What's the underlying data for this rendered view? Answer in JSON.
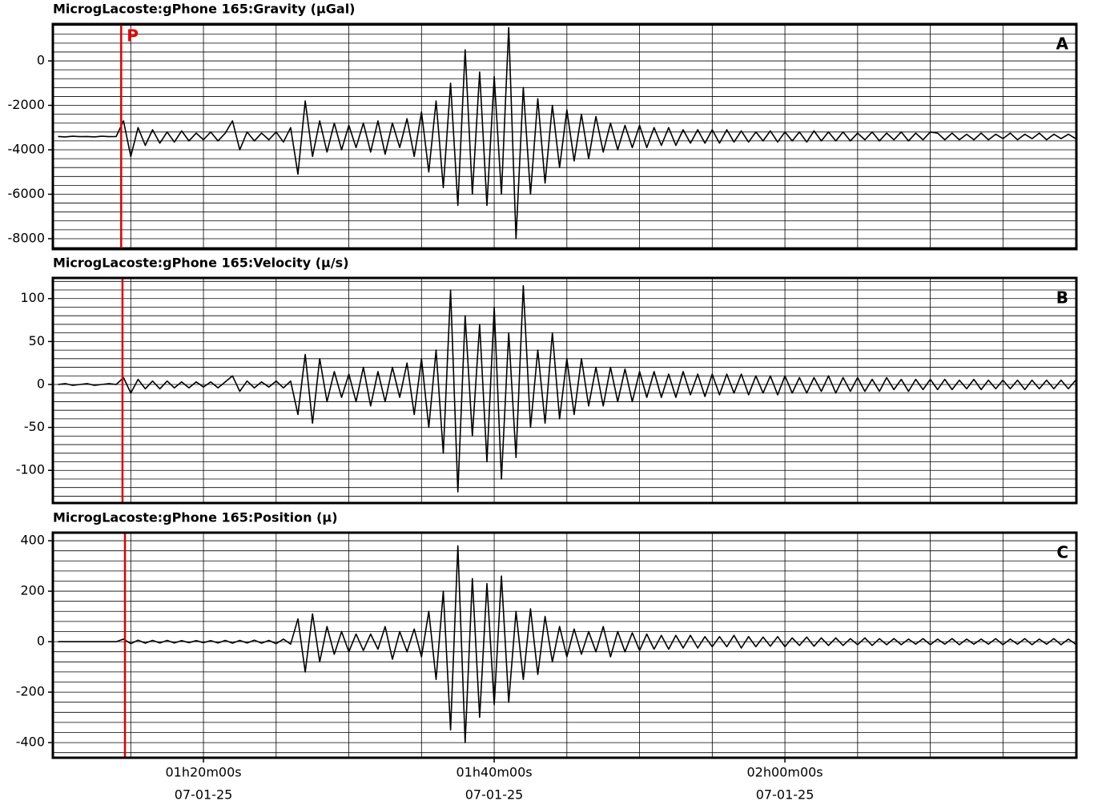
{
  "chart_data": [
    {
      "type": "line",
      "title": "MicrogLacoste:gPhone 165:Gravity (µGal)",
      "panel_label": "A",
      "color": "#000000",
      "xlim": [
        69.64,
        140.05
      ],
      "ylim": [
        -8470,
        1660
      ],
      "yticks": [
        0,
        -2000,
        -4000,
        -6000,
        -8000
      ],
      "ygrid": [
        1600,
        1200,
        800,
        400,
        0,
        -400,
        -800,
        -1200,
        -1600,
        -2000,
        -2400,
        -2800,
        -3200,
        -3600,
        -4000,
        -4400,
        -4800,
        -5200,
        -5600,
        -6000,
        -6400,
        -6800,
        -7200,
        -7600,
        -8000,
        -8400
      ],
      "xgrid": [
        75,
        80,
        85,
        90,
        95,
        100,
        105,
        110,
        115,
        120,
        125,
        130,
        135
      ],
      "marker": {
        "x": 74.34,
        "label": "P",
        "color": "#e00000"
      },
      "x": [
        70,
        70.5,
        71,
        71.5,
        72,
        72.5,
        73,
        73.5,
        74,
        74.5,
        75,
        75.5,
        76,
        76.5,
        77,
        77.5,
        78,
        78.5,
        79,
        79.5,
        80,
        80.5,
        81,
        81.5,
        82,
        82.5,
        83,
        83.5,
        84,
        84.5,
        85,
        85.5,
        86,
        86.5,
        87,
        87.5,
        88,
        88.5,
        89,
        89.5,
        90,
        90.5,
        91,
        91.5,
        92,
        92.5,
        93,
        93.5,
        94,
        94.5,
        95,
        95.5,
        96,
        96.5,
        97,
        97.5,
        98,
        98.5,
        99,
        99.5,
        100,
        100.5,
        101,
        101.5,
        102,
        102.5,
        103,
        103.5,
        104,
        104.5,
        105,
        105.5,
        106,
        106.5,
        107,
        107.5,
        108,
        108.5,
        109,
        109.5,
        110,
        110.5,
        111,
        111.5,
        112,
        112.5,
        113,
        113.5,
        114,
        114.5,
        115,
        115.5,
        116,
        116.5,
        117,
        117.5,
        118,
        118.5,
        119,
        119.5,
        120,
        120.5,
        121,
        121.5,
        122,
        122.5,
        123,
        123.5,
        124,
        124.5,
        125,
        125.5,
        126,
        126.5,
        127,
        127.5,
        128,
        128.5,
        129,
        129.5,
        130,
        130.5,
        131,
        131.5,
        132,
        132.5,
        133,
        133.5,
        134,
        134.5,
        135,
        135.5,
        136,
        136.5,
        137,
        137.5,
        138,
        138.5,
        139,
        139.5,
        140
      ],
      "values": [
        -3400,
        -3420,
        -3390,
        -3410,
        -3400,
        -3420,
        -3390,
        -3410,
        -3400,
        -2700,
        -4300,
        -3000,
        -3800,
        -3100,
        -3700,
        -3200,
        -3650,
        -3150,
        -3600,
        -3250,
        -3550,
        -3200,
        -3600,
        -3250,
        -2700,
        -4000,
        -3200,
        -3600,
        -3250,
        -3550,
        -3200,
        -3650,
        -3000,
        -5100,
        -1800,
        -4300,
        -2700,
        -4100,
        -2800,
        -4000,
        -2900,
        -3900,
        -2800,
        -4100,
        -2700,
        -4200,
        -2800,
        -3900,
        -2600,
        -4300,
        -2300,
        -5000,
        -1800,
        -5700,
        -1000,
        -6500,
        500,
        -6000,
        -500,
        -6500,
        -700,
        -6000,
        1500,
        -8000,
        -1200,
        -6000,
        -1700,
        -5500,
        -2000,
        -4800,
        -2200,
        -4500,
        -2400,
        -4400,
        -2500,
        -4100,
        -2800,
        -4000,
        -2900,
        -3900,
        -2900,
        -3900,
        -3000,
        -3800,
        -3000,
        -3800,
        -3100,
        -3700,
        -3100,
        -3700,
        -3100,
        -3700,
        -3100,
        -3650,
        -3150,
        -3650,
        -3200,
        -3600,
        -3150,
        -3650,
        -3200,
        -3600,
        -3200,
        -3650,
        -3150,
        -3600,
        -3200,
        -3600,
        -3200,
        -3600,
        -3250,
        -3550,
        -3200,
        -3600,
        -3250,
        -3550,
        -3200,
        -3600,
        -3250,
        -3550,
        -3200,
        -3250,
        -3550,
        -3250,
        -3550,
        -3300,
        -3550,
        -3250,
        -3550,
        -3300,
        -3500,
        -3250,
        -3550,
        -3300,
        -3500,
        -3250,
        -3550,
        -3300,
        -3500,
        -3300,
        -3500
      ]
    },
    {
      "type": "line",
      "title": "MicrogLacoste:gPhone 165:Velocity (µ/s)",
      "panel_label": "B",
      "color": "#000000",
      "xlim": [
        69.64,
        140.05
      ],
      "ylim": [
        -138,
        124
      ],
      "yticks": [
        100,
        50,
        0,
        -50,
        -100
      ],
      "ygrid": [
        120,
        110,
        100,
        90,
        80,
        70,
        60,
        50,
        40,
        30,
        20,
        10,
        0,
        -10,
        -20,
        -30,
        -40,
        -50,
        -60,
        -70,
        -80,
        -90,
        -100,
        -110,
        -120,
        -130
      ],
      "xgrid": [
        75,
        80,
        85,
        90,
        95,
        100,
        105,
        110,
        115,
        120,
        125,
        130,
        135
      ],
      "marker": {
        "x": 74.43,
        "color": "#e00000"
      },
      "x": [
        70,
        70.5,
        71,
        71.5,
        72,
        72.5,
        73,
        73.5,
        74,
        74.5,
        75,
        75.5,
        76,
        76.5,
        77,
        77.5,
        78,
        78.5,
        79,
        79.5,
        80,
        80.5,
        81,
        81.5,
        82,
        82.5,
        83,
        83.5,
        84,
        84.5,
        85,
        85.5,
        86,
        86.5,
        87,
        87.5,
        88,
        88.5,
        89,
        89.5,
        90,
        90.5,
        91,
        91.5,
        92,
        92.5,
        93,
        93.5,
        94,
        94.5,
        95,
        95.5,
        96,
        96.5,
        97,
        97.5,
        98,
        98.5,
        99,
        99.5,
        100,
        100.5,
        101,
        101.5,
        102,
        102.5,
        103,
        103.5,
        104,
        104.5,
        105,
        105.5,
        106,
        106.5,
        107,
        107.5,
        108,
        108.5,
        109,
        109.5,
        110,
        110.5,
        111,
        111.5,
        112,
        112.5,
        113,
        113.5,
        114,
        114.5,
        115,
        115.5,
        116,
        116.5,
        117,
        117.5,
        118,
        118.5,
        119,
        119.5,
        120,
        120.5,
        121,
        121.5,
        122,
        122.5,
        123,
        123.5,
        124,
        124.5,
        125,
        125.5,
        126,
        126.5,
        127,
        127.5,
        128,
        128.5,
        129,
        129.5,
        130,
        130.5,
        131,
        131.5,
        132,
        132.5,
        133,
        133.5,
        134,
        134.5,
        135,
        135.5,
        136,
        136.5,
        137,
        137.5,
        138,
        138.5,
        139,
        139.5,
        140
      ],
      "values": [
        0,
        1,
        -1,
        0,
        1,
        -1,
        0,
        1,
        0,
        8,
        -10,
        6,
        -5,
        4,
        -5,
        4,
        -4,
        3,
        -4,
        3,
        -3,
        3,
        -4,
        3,
        10,
        -8,
        4,
        -4,
        3,
        -3,
        4,
        -4,
        4,
        -35,
        35,
        -45,
        30,
        -20,
        15,
        -15,
        12,
        -20,
        20,
        -25,
        15,
        -20,
        20,
        -15,
        25,
        -35,
        30,
        -50,
        40,
        -80,
        110,
        -125,
        80,
        -60,
        70,
        -90,
        90,
        -110,
        60,
        -85,
        115,
        -50,
        40,
        -45,
        60,
        -40,
        30,
        -35,
        30,
        -25,
        20,
        -25,
        20,
        -20,
        18,
        -20,
        15,
        -15,
        15,
        -15,
        12,
        -15,
        15,
        -12,
        12,
        -14,
        12,
        -12,
        12,
        -10,
        12,
        -12,
        10,
        -10,
        10,
        -12,
        10,
        -10,
        8,
        -10,
        8,
        -8,
        10,
        -10,
        8,
        -8,
        8,
        -8,
        6,
        -8,
        8,
        -6,
        6,
        -8,
        6,
        -6,
        6,
        -6,
        6,
        -6,
        5,
        -5,
        6,
        -6,
        5,
        -5,
        5,
        -5,
        5,
        -6,
        5,
        -5,
        5,
        -5,
        5,
        -5,
        5
      ]
    },
    {
      "type": "line",
      "title": "MicrogLacoste:gPhone 165:Position (µ)",
      "panel_label": "C",
      "color": "#000000",
      "xlim": [
        69.64,
        140.05
      ],
      "ylim": [
        -460,
        432
      ],
      "yticks": [
        400,
        200,
        0,
        -200,
        -400
      ],
      "ygrid": [
        400,
        360,
        320,
        280,
        240,
        200,
        160,
        120,
        80,
        40,
        0,
        -40,
        -80,
        -120,
        -160,
        -200,
        -240,
        -280,
        -320,
        -360,
        -400,
        -440
      ],
      "xgrid": [
        75,
        80,
        85,
        90,
        95,
        100,
        105,
        110,
        115,
        120,
        125,
        130,
        135
      ],
      "xticks": [
        {
          "value": 80,
          "label": "01h20m00s"
        },
        {
          "value": 100,
          "label": "01h40m00s"
        },
        {
          "value": 120,
          "label": "02h00m00s"
        }
      ],
      "xtick_date": "07-01-25",
      "marker": {
        "x": 74.6,
        "color": "#e00000"
      },
      "x": [
        70,
        70.5,
        71,
        71.5,
        72,
        72.5,
        73,
        73.5,
        74,
        74.5,
        75,
        75.5,
        76,
        76.5,
        77,
        77.5,
        78,
        78.5,
        79,
        79.5,
        80,
        80.5,
        81,
        81.5,
        82,
        82.5,
        83,
        83.5,
        84,
        84.5,
        85,
        85.5,
        86,
        86.5,
        87,
        87.5,
        88,
        88.5,
        89,
        89.5,
        90,
        90.5,
        91,
        91.5,
        92,
        92.5,
        93,
        93.5,
        94,
        94.5,
        95,
        95.5,
        96,
        96.5,
        97,
        97.5,
        98,
        98.5,
        99,
        99.5,
        100,
        100.5,
        101,
        101.5,
        102,
        102.5,
        103,
        103.5,
        104,
        104.5,
        105,
        105.5,
        106,
        106.5,
        107,
        107.5,
        108,
        108.5,
        109,
        109.5,
        110,
        110.5,
        111,
        111.5,
        112,
        112.5,
        113,
        113.5,
        114,
        114.5,
        115,
        115.5,
        116,
        116.5,
        117,
        117.5,
        118,
        118.5,
        119,
        119.5,
        120,
        120.5,
        121,
        121.5,
        122,
        122.5,
        123,
        123.5,
        124,
        124.5,
        125,
        125.5,
        126,
        126.5,
        127,
        127.5,
        128,
        128.5,
        129,
        129.5,
        130,
        130.5,
        131,
        131.5,
        132,
        132.5,
        133,
        133.5,
        134,
        134.5,
        135,
        135.5,
        136,
        136.5,
        137,
        137.5,
        138,
        138.5,
        139,
        139.5,
        140
      ],
      "values": [
        0,
        0,
        0,
        0,
        0,
        0,
        0,
        0,
        0,
        10,
        -8,
        6,
        -6,
        5,
        -5,
        5,
        -5,
        4,
        -4,
        4,
        -4,
        4,
        -5,
        5,
        -6,
        5,
        -5,
        6,
        -6,
        5,
        -8,
        10,
        -10,
        90,
        -120,
        110,
        -80,
        60,
        -50,
        40,
        -40,
        30,
        -35,
        30,
        -30,
        60,
        -70,
        40,
        -40,
        50,
        -60,
        120,
        -150,
        200,
        -350,
        380,
        -400,
        250,
        -300,
        230,
        -250,
        260,
        -240,
        120,
        -150,
        130,
        -130,
        100,
        -80,
        60,
        -60,
        50,
        -50,
        40,
        -40,
        60,
        -60,
        40,
        -40,
        35,
        -35,
        30,
        -30,
        25,
        -30,
        25,
        -25,
        25,
        -25,
        20,
        -20,
        20,
        -20,
        25,
        -25,
        20,
        -20,
        18,
        -18,
        20,
        -20,
        15,
        -15,
        18,
        -18,
        15,
        -15,
        15,
        -15,
        12,
        -12,
        15,
        -15,
        12,
        -12,
        12,
        -12,
        10,
        -10,
        12,
        -12,
        10,
        -10,
        12,
        -12,
        10,
        -10,
        10,
        -10,
        12,
        -12,
        10,
        -10,
        12,
        -12,
        10,
        -10,
        12,
        -12,
        10,
        -10
      ]
    }
  ]
}
